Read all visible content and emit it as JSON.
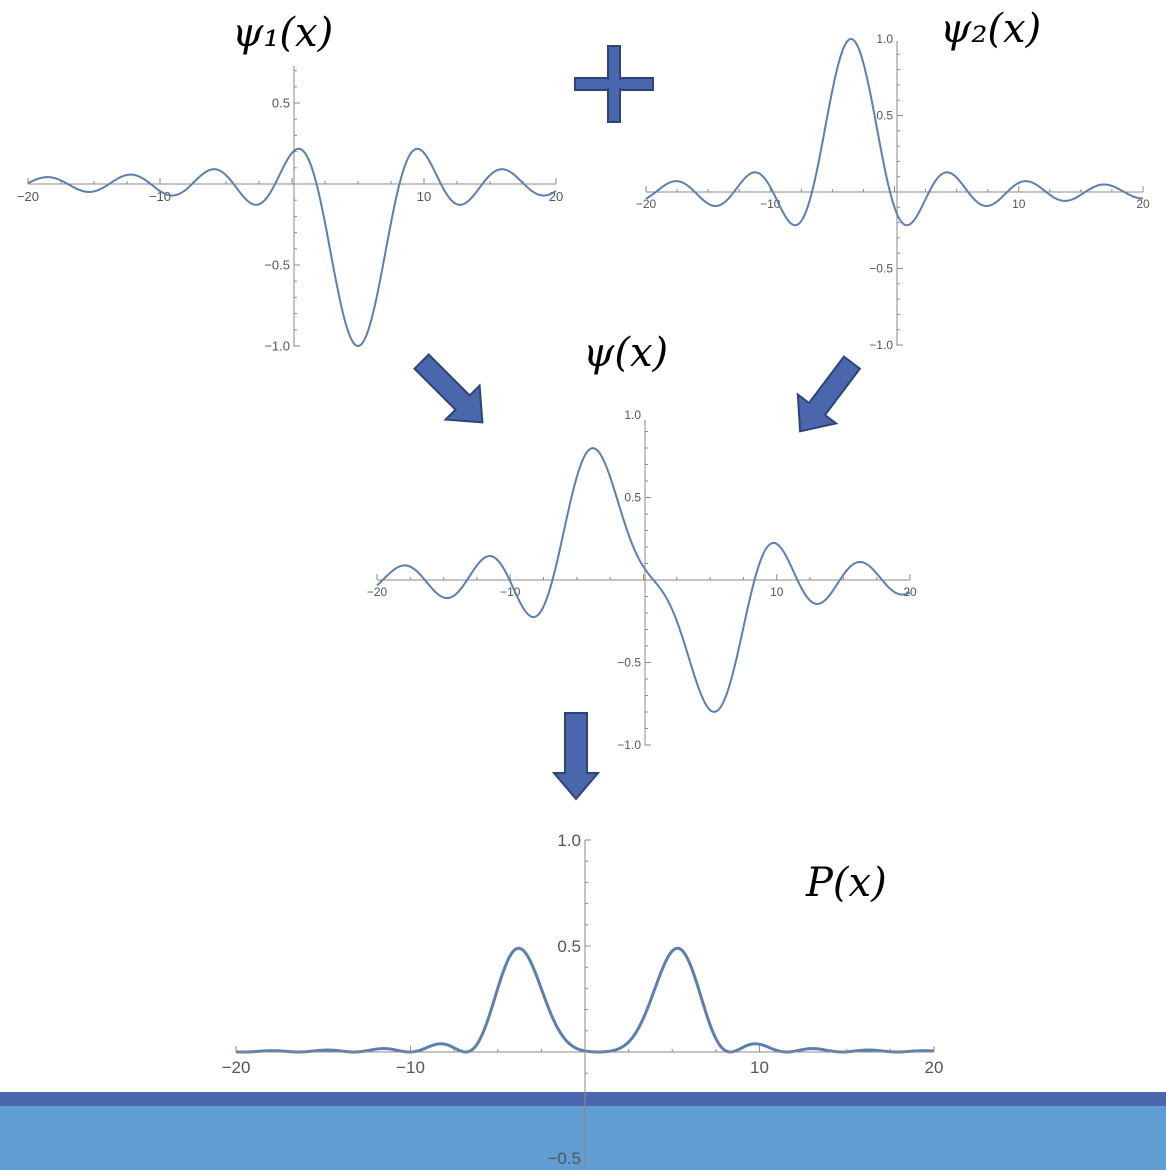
{
  "colors": {
    "curve": "#5b7fb0",
    "axis": "#8a8a8a",
    "arrow_fill": "#4a67ad",
    "arrow_stroke": "#2e4378",
    "band_dark": "#4a67ad",
    "band_light": "#5f9dd2"
  },
  "decorations": {
    "plus_icon": "plus-icon",
    "arrows": [
      "arrow-down-right-icon",
      "arrow-down-left-icon",
      "arrow-down-icon"
    ]
  },
  "chart_data": [
    {
      "id": "psi1",
      "type": "line",
      "title": "ψ₁(x)",
      "function": "-sinc(x-5)",
      "xlim": [
        -20,
        20
      ],
      "ylim": [
        -1.0,
        0.7
      ],
      "xticks": [
        -20,
        -10,
        10,
        20
      ],
      "yticks": [
        0.5,
        -0.5,
        -1.0
      ],
      "xtick_labels": [
        "−20",
        "−10",
        "10",
        "20"
      ],
      "ytick_labels": [
        "0.5",
        "−0.5",
        "−1.0"
      ],
      "grid": false
    },
    {
      "id": "psi2",
      "type": "line",
      "title": "ψ₂(x)",
      "function": "sinc(x+3.5)",
      "xlim": [
        -20,
        20
      ],
      "ylim": [
        -1.0,
        1.0
      ],
      "xticks": [
        -20,
        -10,
        10,
        20
      ],
      "yticks": [
        1.0,
        0.5,
        -0.5,
        -1.0
      ],
      "xtick_labels": [
        "−20",
        "−10",
        "10",
        "20"
      ],
      "ytick_labels": [
        "1.0",
        "0.5",
        "−0.5",
        "−1.0"
      ],
      "grid": false
    },
    {
      "id": "psi",
      "type": "line",
      "title": "ψ(x)",
      "function": "sinc(x+3.5) - sinc(x-5)",
      "xlim": [
        -20,
        20
      ],
      "ylim": [
        -1.0,
        1.0
      ],
      "xticks": [
        -20,
        -10,
        10,
        20
      ],
      "yticks": [
        1.0,
        0.5,
        -0.5,
        -1.0
      ],
      "xtick_labels": [
        "−20",
        "−10",
        "10",
        "20"
      ],
      "ytick_labels": [
        "1.0",
        "0.5",
        "−0.5",
        "−1.0"
      ],
      "grid": false
    },
    {
      "id": "P",
      "type": "line",
      "title": "P(x)",
      "function": "|ψ(x)|²",
      "xlim": [
        -20,
        20
      ],
      "ylim": [
        -0.5,
        1.0
      ],
      "xticks": [
        -20,
        -10,
        10,
        20
      ],
      "yticks": [
        1.0,
        0.5,
        -0.5
      ],
      "xtick_labels": [
        "−20",
        "−10",
        "10",
        "20"
      ],
      "ytick_labels": [
        "1.0",
        "0.5",
        "−0.5"
      ],
      "grid": false
    }
  ]
}
